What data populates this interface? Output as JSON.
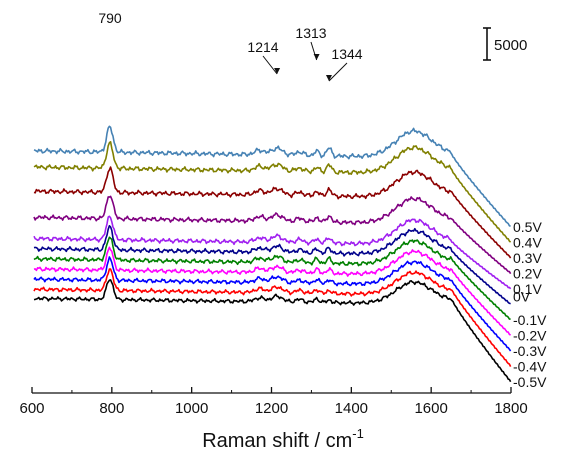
{
  "chart_data": {
    "type": "line",
    "xlabel": "Raman shift / cm",
    "xlabel_superscript": "-1",
    "xlim": [
      600,
      1800
    ],
    "xticks": [
      "600",
      "800",
      "1000",
      "1200",
      "1400",
      "1600",
      "1800"
    ],
    "grid": false,
    "scale_bar_label": "5000",
    "peaks": [
      {
        "label": "790",
        "x": 795
      },
      {
        "label": "1214",
        "x": 1214
      },
      {
        "label": "1313",
        "x": 1313
      },
      {
        "label": "1344",
        "x": 1344
      }
    ],
    "series": [
      {
        "name": "-0.5V",
        "color": "#000000",
        "offset": 0
      },
      {
        "name": "-0.4V",
        "color": "#ff0000",
        "offset": 1
      },
      {
        "name": "-0.3V",
        "color": "#0000ff",
        "offset": 2
      },
      {
        "name": "-0.2V",
        "color": "#ff00ff",
        "offset": 3
      },
      {
        "name": "-0.1V",
        "color": "#008000",
        "offset": 4
      },
      {
        "name": "0V",
        "color": "#00008b",
        "offset": 5
      },
      {
        "name": "0.1V",
        "color": "#a020f0",
        "offset": 6
      },
      {
        "name": "0.2V",
        "color": "#800080",
        "offset": 7
      },
      {
        "name": "0.3V",
        "color": "#8b0000",
        "offset": 8
      },
      {
        "name": "0.4V",
        "color": "#808000",
        "offset": 9
      },
      {
        "name": "0.5V",
        "color": "#4682b4",
        "offset": 10
      }
    ]
  }
}
